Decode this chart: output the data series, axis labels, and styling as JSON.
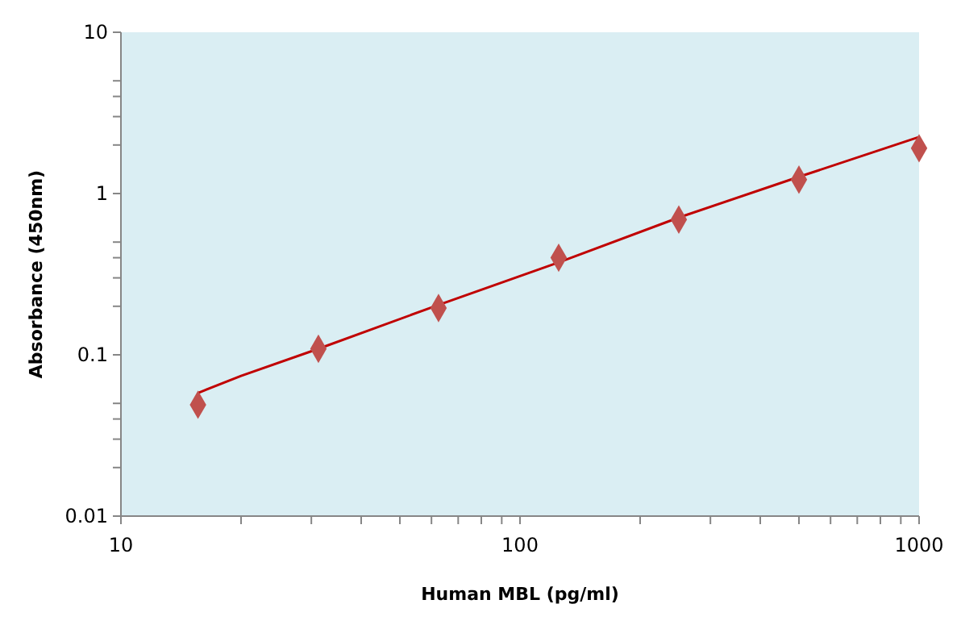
{
  "chart_data": {
    "type": "scatter",
    "xlabel": "Human MBL (pg/ml)",
    "ylabel": "Absorbance (450nm)",
    "log": "xy",
    "grid": false,
    "xlim": [
      10,
      1000
    ],
    "ylim": [
      0.01,
      10
    ],
    "xticks": [
      10,
      {
        "value": 20,
        "label": null
      },
      {
        "value": 30,
        "label": null
      },
      {
        "value": 40,
        "label": null
      },
      {
        "value": 50,
        "label": null
      },
      {
        "value": 60,
        "label": null
      },
      {
        "value": 70,
        "label": null
      },
      {
        "value": 80,
        "label": null
      },
      {
        "value": 90,
        "label": null
      },
      100,
      {
        "value": 200,
        "label": null
      },
      {
        "value": 300,
        "label": null
      },
      {
        "value": 400,
        "label": null
      },
      {
        "value": 500,
        "label": null
      },
      {
        "value": 600,
        "label": null
      },
      {
        "value": 700,
        "label": null
      },
      {
        "value": 800,
        "label": null
      },
      {
        "value": 900,
        "label": null
      },
      1000
    ],
    "yticks": [
      0.01,
      {
        "value": 0.02,
        "label": null
      },
      {
        "value": 0.03,
        "label": null
      },
      {
        "value": 0.04,
        "label": null
      },
      {
        "value": 0.05,
        "label": null
      },
      0.1,
      {
        "value": 0.2,
        "label": null
      },
      {
        "value": 0.3,
        "label": null
      },
      {
        "value": 0.4,
        "label": null
      },
      {
        "value": 0.5,
        "label": null
      },
      1,
      {
        "value": 2,
        "label": null
      },
      {
        "value": 3,
        "label": null
      },
      {
        "value": 4,
        "label": null
      },
      {
        "value": 5,
        "label": null
      },
      10
    ],
    "series": [
      {
        "type": "line",
        "color": "#c00000",
        "marker": "none",
        "x": [
          15.6,
          20,
          31.25,
          62.5,
          125,
          250,
          500,
          1000
        ],
        "values": [
          0.058,
          0.074,
          0.109,
          0.204,
          0.374,
          0.71,
          1.27,
          2.24
        ]
      },
      {
        "color": "#c0504d",
        "marker": "diamond",
        "x": [
          15.6,
          31.25,
          62.5,
          125,
          250,
          500,
          1000
        ],
        "values": [
          0.049,
          0.109,
          0.195,
          0.4,
          0.69,
          1.22,
          1.91
        ]
      }
    ]
  }
}
